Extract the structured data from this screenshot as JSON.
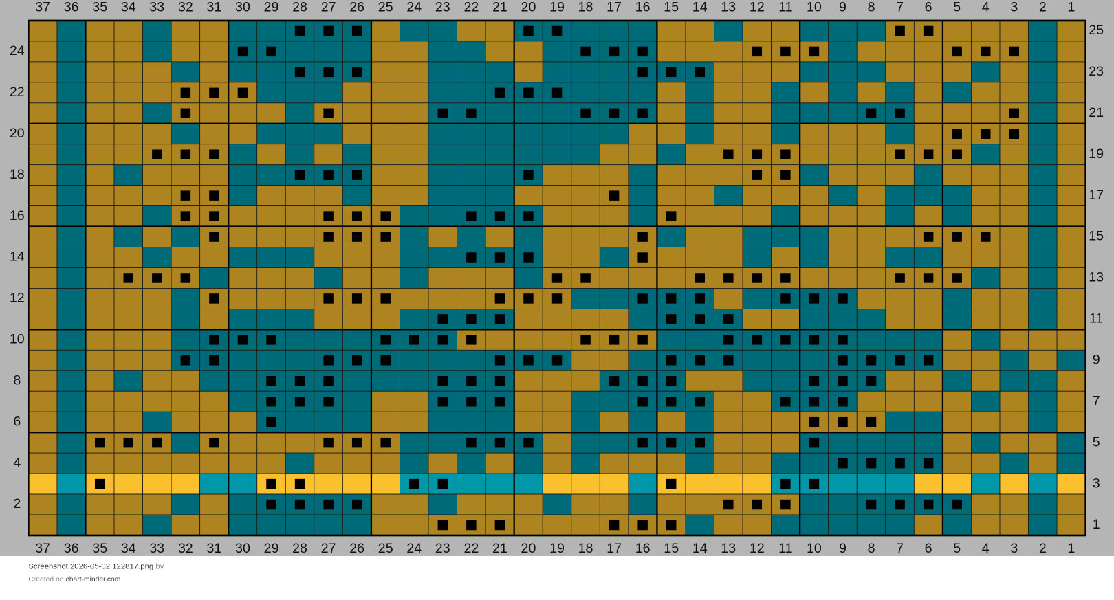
{
  "column_numbers": [
    37,
    36,
    35,
    34,
    33,
    32,
    31,
    30,
    29,
    28,
    27,
    26,
    25,
    24,
    23,
    22,
    21,
    20,
    19,
    18,
    17,
    16,
    15,
    14,
    13,
    12,
    11,
    10,
    9,
    8,
    7,
    6,
    5,
    4,
    3,
    2,
    1
  ],
  "row_numbers": [
    25,
    24,
    23,
    22,
    21,
    20,
    19,
    18,
    17,
    16,
    15,
    14,
    13,
    12,
    11,
    10,
    9,
    8,
    7,
    6,
    5,
    4,
    3,
    2,
    1
  ],
  "footer": {
    "filename": "Screenshot 2026-05-02 122817.png",
    "by": "by",
    "created_on": "Created on",
    "site": "chart-minder.com"
  }
}
